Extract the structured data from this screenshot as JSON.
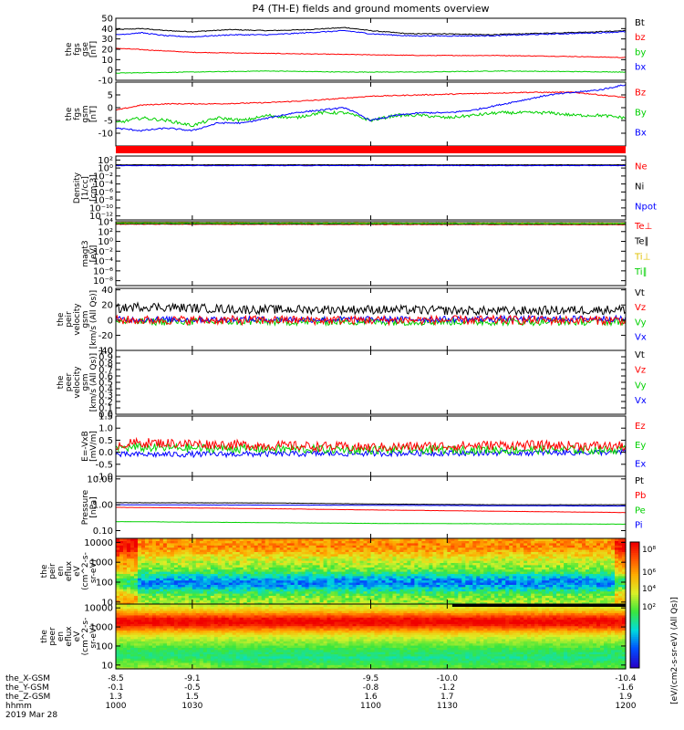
{
  "title": "P4 (TH-E) fields and ground moments overview",
  "date_label": "2019 Mar 28",
  "colors": {
    "black": "#000000",
    "red": "#ff0000",
    "green": "#00d000",
    "blue": "#0000ff",
    "yellow": "#e0c000"
  },
  "chart_data": [
    {
      "id": "fgs_gse",
      "type": "line",
      "ylabel": [
        "the",
        "fgs",
        "gse",
        "[nT]"
      ],
      "ylim": [
        -10,
        50
      ],
      "yticks": [
        {
          "v": 50,
          "l": "50"
        },
        {
          "v": 40,
          "l": "40"
        },
        {
          "v": 30,
          "l": "30"
        },
        {
          "v": 20,
          "l": "20"
        },
        {
          "v": 10,
          "l": "10"
        },
        {
          "v": 0,
          "l": "0"
        },
        {
          "v": -10,
          "l": "-10"
        }
      ],
      "legend": [
        {
          "l": "Bt",
          "c": "black"
        },
        {
          "l": "bz",
          "c": "red"
        },
        {
          "l": "by",
          "c": "green"
        },
        {
          "l": "bx",
          "c": "blue"
        }
      ],
      "series": [
        {
          "name": "Bt",
          "color": "black",
          "noise": 0.4,
          "x": [
            1000,
            1010,
            1020,
            1030,
            1045,
            1060,
            1075,
            1090,
            1100,
            1115,
            1130,
            1145,
            1160,
            1175,
            1190,
            1200
          ],
          "y": [
            39,
            40,
            38,
            37,
            39,
            38,
            39,
            41,
            38,
            35,
            35,
            34,
            35,
            36,
            37,
            38
          ]
        },
        {
          "name": "bz",
          "color": "red",
          "noise": 0.3,
          "x": [
            1000,
            1015,
            1030,
            1060,
            1090,
            1120,
            1150,
            1180,
            1200
          ],
          "y": [
            21,
            19,
            17,
            16,
            15,
            14,
            14,
            13,
            12
          ]
        },
        {
          "name": "by",
          "color": "green",
          "noise": 0.3,
          "x": [
            1000,
            1030,
            1060,
            1090,
            1120,
            1150,
            1200
          ],
          "y": [
            -3,
            -2,
            -1,
            -2,
            -2,
            -1,
            -2
          ]
        },
        {
          "name": "bx",
          "color": "blue",
          "noise": 0.5,
          "x": [
            1000,
            1010,
            1020,
            1030,
            1045,
            1060,
            1075,
            1090,
            1100,
            1115,
            1130,
            1145,
            1160,
            1175,
            1190,
            1200
          ],
          "y": [
            34,
            36,
            33,
            32,
            34,
            34,
            36,
            38,
            35,
            33,
            33,
            33,
            34,
            35,
            36,
            37
          ]
        }
      ]
    },
    {
      "id": "fgs_gsm",
      "type": "line",
      "ylabel": [
        "the",
        "fgs",
        "gsm",
        "[nT]"
      ],
      "ylim": [
        -15,
        10
      ],
      "yticks": [
        {
          "v": 5,
          "l": "5"
        },
        {
          "v": 0,
          "l": "0"
        },
        {
          "v": -5,
          "l": "-5"
        },
        {
          "v": -10,
          "l": "-10"
        }
      ],
      "legend": [
        {
          "l": "Bz",
          "c": "red"
        },
        {
          "l": "By",
          "c": "green"
        },
        {
          "l": "Bx",
          "c": "blue"
        }
      ],
      "series": [
        {
          "name": "Bz",
          "color": "red",
          "noise": 0.2,
          "x": [
            1000,
            1010,
            1020,
            1040,
            1060,
            1080,
            1100,
            1120,
            1140,
            1160,
            1180,
            1190,
            1200
          ],
          "y": [
            -1,
            1,
            1.5,
            1.5,
            2,
            3,
            4.5,
            5,
            5.5,
            6,
            6,
            5,
            4
          ]
        },
        {
          "name": "By",
          "color": "green",
          "noise": 0.6,
          "x": [
            1000,
            1010,
            1020,
            1030,
            1040,
            1050,
            1060,
            1070,
            1080,
            1090,
            1100,
            1110,
            1120,
            1130,
            1140,
            1150,
            1160,
            1170,
            1180,
            1190,
            1200
          ],
          "y": [
            -6,
            -4,
            -5,
            -7,
            -4,
            -5,
            -3,
            -4,
            -2,
            -2,
            -5,
            -3,
            -3,
            -4,
            -3,
            -2,
            -2,
            -2,
            -3,
            -3,
            -4
          ]
        },
        {
          "name": "Bx",
          "color": "blue",
          "noise": 0.3,
          "x": [
            1000,
            1010,
            1020,
            1030,
            1040,
            1050,
            1060,
            1070,
            1080,
            1090,
            1100,
            1110,
            1120,
            1130,
            1140,
            1150,
            1160,
            1170,
            1180,
            1190,
            1200
          ],
          "y": [
            -8,
            -9,
            -8,
            -9,
            -6,
            -6,
            -4,
            -2,
            -1,
            0,
            -5,
            -3,
            -2,
            -2,
            -1,
            1,
            3,
            5,
            6,
            7,
            9
          ]
        }
      ]
    },
    {
      "id": "bar",
      "type": "bar-strip",
      "color": "red"
    },
    {
      "id": "density",
      "type": "line",
      "log": true,
      "ylabel": [
        "Density",
        "[1/cc]",
        "[cm-3]"
      ],
      "ylim": [
        -13,
        3
      ],
      "yticks": [
        {
          "v": 2,
          "l": "10²"
        },
        {
          "v": 0,
          "l": "10⁰"
        },
        {
          "v": -2,
          "l": "10⁻²"
        },
        {
          "v": -4,
          "l": "10⁻⁴"
        },
        {
          "v": -6,
          "l": "10⁻⁶"
        },
        {
          "v": -8,
          "l": "10⁻⁸"
        },
        {
          "v": -10,
          "l": "10⁻¹⁰"
        },
        {
          "v": -12,
          "l": "10⁻¹²"
        }
      ],
      "legend": [
        {
          "l": "Ne",
          "c": "red"
        },
        {
          "l": "Ni",
          "c": "black"
        },
        {
          "l": "Npot",
          "c": "blue"
        }
      ],
      "series": [
        {
          "name": "Ne",
          "color": "red",
          "noise": 0.05,
          "x": [
            1000,
            1200
          ],
          "y": [
            0.7,
            0.7
          ]
        },
        {
          "name": "Ni",
          "color": "black",
          "noise": 0.04,
          "x": [
            1000,
            1200
          ],
          "y": [
            0.8,
            0.8
          ]
        },
        {
          "name": "Npot",
          "color": "blue",
          "noise": 0.05,
          "x": [
            1000,
            1200
          ],
          "y": [
            0.6,
            0.6
          ]
        }
      ]
    },
    {
      "id": "temp",
      "type": "line",
      "log": true,
      "ylabel": [
        "magt3",
        "[eV]"
      ],
      "ylim": [
        -9,
        4
      ],
      "yticks": [
        {
          "v": 4,
          "l": "10⁴"
        },
        {
          "v": 2,
          "l": "10²"
        },
        {
          "v": 0,
          "l": "10⁰"
        },
        {
          "v": -2,
          "l": "10⁻²"
        },
        {
          "v": -4,
          "l": "10⁻⁴"
        },
        {
          "v": -6,
          "l": "10⁻⁶"
        },
        {
          "v": -8,
          "l": "10⁻⁸"
        }
      ],
      "legend": [
        {
          "l": "Te⊥",
          "c": "red"
        },
        {
          "l": "Te∥",
          "c": "black"
        },
        {
          "l": "Ti⊥",
          "c": "yellow"
        },
        {
          "l": "Ti∥",
          "c": "green"
        }
      ],
      "series": [
        {
          "name": "Te⊥",
          "color": "red",
          "noise": 0.05,
          "x": [
            1000,
            1200
          ],
          "y": [
            3.5,
            3.4
          ]
        },
        {
          "name": "Te∥",
          "color": "black",
          "noise": 0.05,
          "x": [
            1000,
            1200
          ],
          "y": [
            3.6,
            3.5
          ]
        },
        {
          "name": "Ti⊥",
          "color": "yellow",
          "noise": 0.05,
          "x": [
            1000,
            1200
          ],
          "y": [
            3.8,
            3.7
          ]
        },
        {
          "name": "Ti∥",
          "color": "green",
          "noise": 0.05,
          "x": [
            1000,
            1200
          ],
          "y": [
            3.7,
            3.6
          ]
        }
      ]
    },
    {
      "id": "peir_vel",
      "type": "line",
      "ylabel": [
        "the",
        "peir",
        "velocity",
        "gsm",
        "[km/s (All Qs)]"
      ],
      "ylim": [
        -40,
        42
      ],
      "yticks": [
        {
          "v": 40,
          "l": "40"
        },
        {
          "v": 20,
          "l": "20"
        },
        {
          "v": 0,
          "l": "0"
        },
        {
          "v": -20,
          "l": "-20"
        },
        {
          "v": -40,
          "l": "-40"
        }
      ],
      "legend": [
        {
          "l": "Vt",
          "c": "black"
        },
        {
          "l": "Vz",
          "c": "red"
        },
        {
          "l": "Vy",
          "c": "green"
        },
        {
          "l": "Vx",
          "c": "blue"
        }
      ],
      "series": [
        {
          "name": "Vt",
          "color": "black",
          "noise": 6,
          "x": [
            1000,
            1010,
            1050,
            1100,
            1150,
            1200
          ],
          "y": [
            15,
            18,
            14,
            14,
            12,
            14
          ]
        },
        {
          "name": "Vy",
          "color": "green",
          "noise": 5,
          "x": [
            1000,
            1100,
            1200
          ],
          "y": [
            -2,
            -2,
            -2
          ]
        },
        {
          "name": "Vx",
          "color": "blue",
          "noise": 4,
          "x": [
            1000,
            1100,
            1200
          ],
          "y": [
            1,
            1,
            2
          ]
        },
        {
          "name": "Vz",
          "color": "red",
          "noise": 6,
          "x": [
            1000,
            1100,
            1200
          ],
          "y": [
            0,
            0,
            0
          ]
        }
      ]
    },
    {
      "id": "peer_vel",
      "type": "line",
      "ylabel": [
        "the",
        "peer",
        "velocity",
        "gsm",
        "[km/s (All Qs)]"
      ],
      "ylim": [
        0,
        1
      ],
      "yticks": [
        {
          "v": 1,
          "l": "1.0"
        },
        {
          "v": 0.9,
          "l": "0.9"
        },
        {
          "v": 0.8,
          "l": "0.8"
        },
        {
          "v": 0.7,
          "l": "0.7"
        },
        {
          "v": 0.6,
          "l": "0.6"
        },
        {
          "v": 0.5,
          "l": "0.5"
        },
        {
          "v": 0.4,
          "l": "0.4"
        },
        {
          "v": 0.3,
          "l": "0.3"
        },
        {
          "v": 0.2,
          "l": "0.2"
        },
        {
          "v": 0.1,
          "l": "0.1"
        },
        {
          "v": 0,
          "l": "0.0"
        }
      ],
      "legend": [
        {
          "l": "Vt",
          "c": "black"
        },
        {
          "l": "Vz",
          "c": "red"
        },
        {
          "l": "Vy",
          "c": "green"
        },
        {
          "l": "Vx",
          "c": "blue"
        }
      ],
      "series": []
    },
    {
      "id": "efield",
      "type": "line",
      "ylabel": [
        "E=-VxB",
        "[mV/m]"
      ],
      "ylim": [
        -1,
        1.5
      ],
      "yticks": [
        {
          "v": 1.5,
          "l": "1.5"
        },
        {
          "v": 1,
          "l": "1.0"
        },
        {
          "v": 0.5,
          "l": "0.5"
        },
        {
          "v": 0,
          "l": "0.0"
        },
        {
          "v": -0.5,
          "l": "-0.5"
        },
        {
          "v": -1,
          "l": "-1.0"
        }
      ],
      "legend": [
        {
          "l": "Ez",
          "c": "red"
        },
        {
          "l": "Ey",
          "c": "green"
        },
        {
          "l": "Ex",
          "c": "blue"
        }
      ],
      "series": [
        {
          "name": "Ex",
          "color": "blue",
          "noise": 0.12,
          "x": [
            1000,
            1100,
            1200
          ],
          "y": [
            -0.1,
            -0.05,
            0
          ]
        },
        {
          "name": "Ey",
          "color": "green",
          "noise": 0.18,
          "x": [
            1000,
            1050,
            1100,
            1150,
            1200
          ],
          "y": [
            0.2,
            0.15,
            0.1,
            0.1,
            0.1
          ]
        },
        {
          "name": "Ez",
          "color": "red",
          "noise": 0.2,
          "x": [
            1000,
            1010,
            1050,
            1100,
            1150,
            1200
          ],
          "y": [
            0.3,
            0.4,
            0.3,
            0.2,
            0.3,
            0.25
          ]
        }
      ]
    },
    {
      "id": "pressure",
      "type": "line",
      "log": true,
      "ylabel": [
        "Pressure",
        "[nPa]"
      ],
      "ylim": [
        -1.3,
        1.1
      ],
      "yticks": [
        {
          "v": 1,
          "l": "10.00"
        },
        {
          "v": 0,
          "l": "1.00"
        },
        {
          "v": -1,
          "l": "0.10"
        }
      ],
      "legend": [
        {
          "l": "Pt",
          "c": "black"
        },
        {
          "l": "Pb",
          "c": "red"
        },
        {
          "l": "Pe",
          "c": "green"
        },
        {
          "l": "Pi",
          "c": "blue"
        }
      ],
      "series": [
        {
          "name": "Pt",
          "color": "black",
          "noise": 0.005,
          "x": [
            1000,
            1060,
            1100,
            1150,
            1200
          ],
          "y": [
            0.08,
            0.07,
            0.03,
            0.0,
            0.0
          ]
        },
        {
          "name": "Pb",
          "color": "red",
          "noise": 0.004,
          "x": [
            1000,
            1060,
            1100,
            1150,
            1200
          ],
          "y": [
            -0.1,
            -0.15,
            -0.2,
            -0.25,
            -0.3
          ]
        },
        {
          "name": "Pe",
          "color": "green",
          "noise": 0.004,
          "x": [
            1000,
            1100,
            1200
          ],
          "y": [
            -0.65,
            -0.72,
            -0.75
          ]
        },
        {
          "name": "Pi",
          "color": "blue",
          "noise": 0.004,
          "x": [
            1000,
            1100,
            1200
          ],
          "y": [
            0.0,
            -0.02,
            -0.05
          ]
        }
      ]
    },
    {
      "id": "peir_spec",
      "type": "heatmap",
      "ylabel": [
        "the",
        "peir",
        "en",
        "eflux",
        "eV",
        "(cm^2-s-",
        "sr-eV)"
      ],
      "ylim": [
        0.9,
        4.2
      ],
      "yticks": [
        {
          "v": 4,
          "l": "10000"
        },
        {
          "v": 3,
          "l": "1000"
        },
        {
          "v": 2,
          "l": "100"
        },
        {
          "v": 1,
          "l": "10"
        }
      ]
    },
    {
      "id": "peer_spec",
      "type": "heatmap",
      "ylabel": [
        "the",
        "peer",
        "en",
        "eflux",
        "eV",
        "(cm^2-s-",
        "sr-eV)"
      ],
      "ylim": [
        0.8,
        4.2
      ],
      "yticks": [
        {
          "v": 4,
          "l": "10000"
        },
        {
          "v": 3,
          "l": "1000"
        },
        {
          "v": 2,
          "l": "100"
        },
        {
          "v": 1,
          "l": "10"
        }
      ]
    }
  ],
  "colorbar": {
    "label": "[eV/(cm2-s-sr-eV) (All Qs)]",
    "ticks": [
      "10⁸",
      "10⁶",
      "10⁴",
      "10²"
    ]
  },
  "xaxis": {
    "xlim": [
      1000,
      1200
    ],
    "rows": [
      {
        "label": "the_X-GSM",
        "values": [
          "-8.5",
          "-9.1",
          "-9.5",
          "-10.0",
          "-10.4"
        ]
      },
      {
        "label": "the_Y-GSM",
        "values": [
          "-0.1",
          "-0.5",
          "-0.8",
          "-1.2",
          "-1.6"
        ]
      },
      {
        "label": "the_Z-GSM",
        "values": [
          "1.3",
          "1.5",
          "1.6",
          "1.7",
          "1.9"
        ]
      },
      {
        "label": "hhmm",
        "values": [
          "1000",
          "1030",
          "1100",
          "1130",
          "1200"
        ]
      }
    ],
    "ticks": [
      1000,
      1030,
      1100,
      1130,
      1200
    ]
  }
}
